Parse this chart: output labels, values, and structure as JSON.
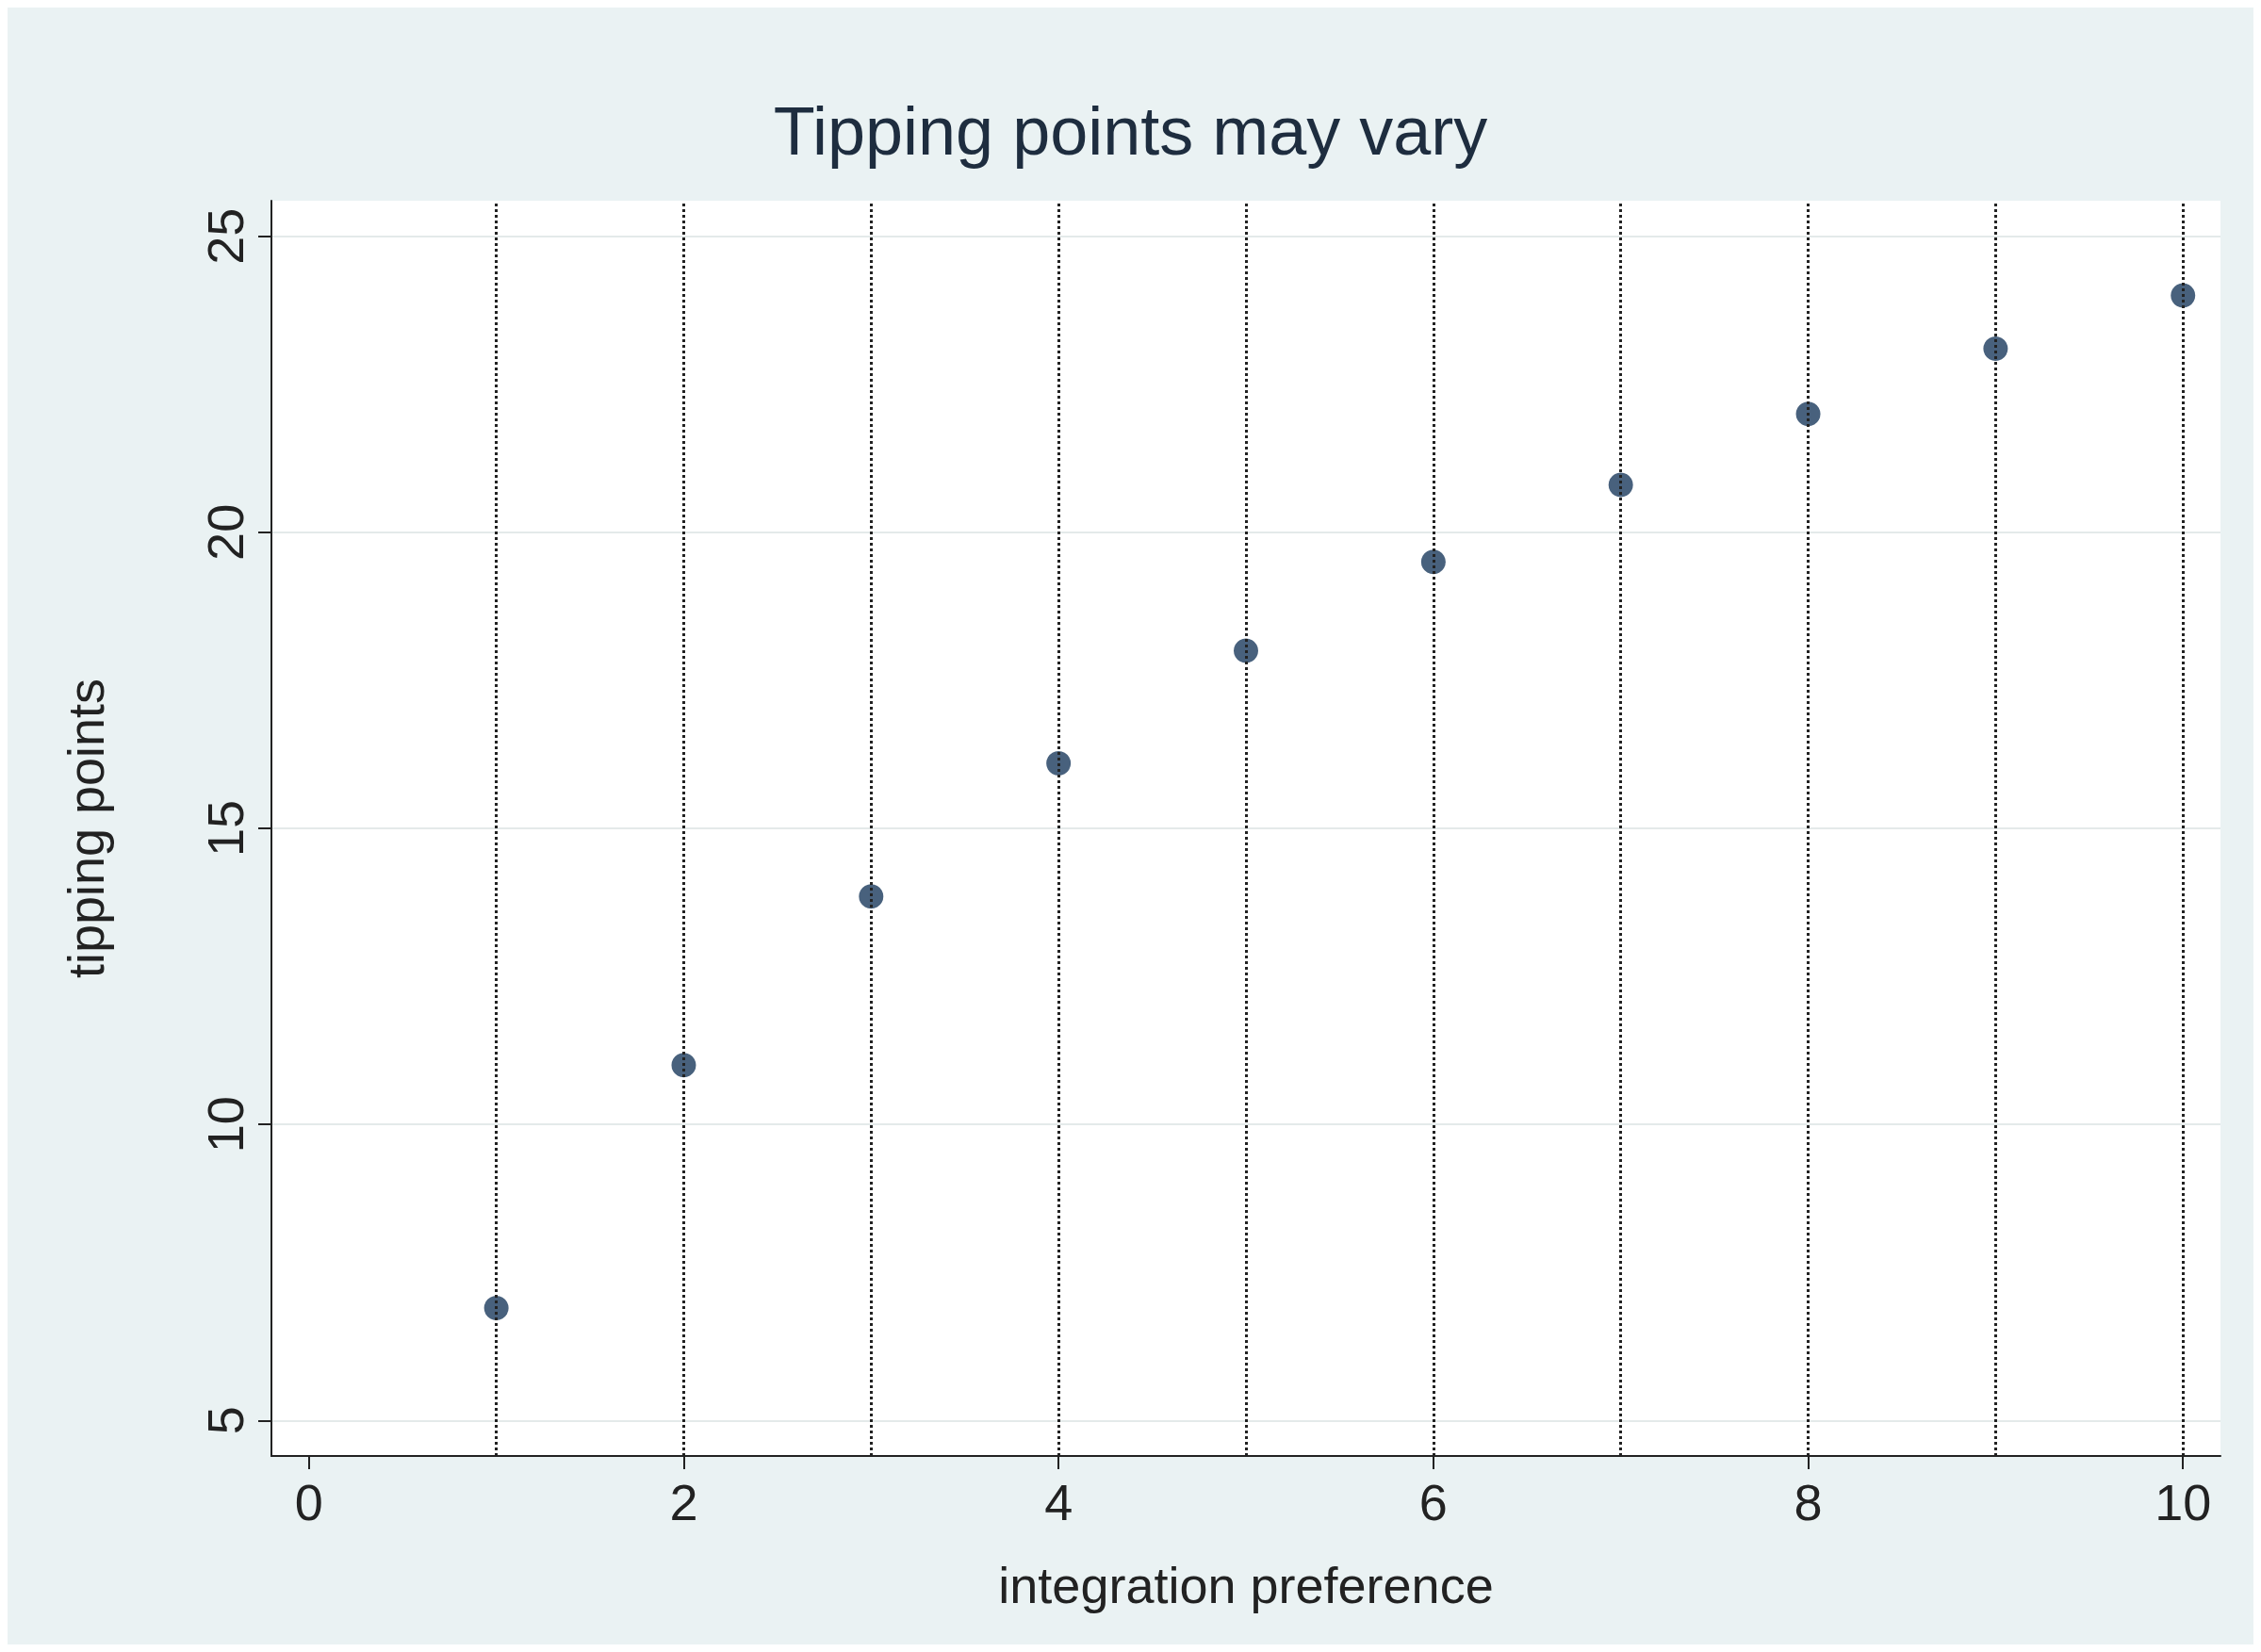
{
  "chart_data": {
    "type": "scatter",
    "title": "Tipping points may vary",
    "xlabel": "integration preference",
    "ylabel": "tipping points",
    "x": [
      1,
      2,
      3,
      4,
      5,
      6,
      7,
      8,
      9,
      10
    ],
    "series": [
      {
        "color": "#1a3a5c",
        "values": [
          6.9,
          11.0,
          13.85,
          16.1,
          18.0,
          19.5,
          20.8,
          22.0,
          23.1,
          24.0
        ]
      }
    ],
    "xlim": [
      -0.2,
      10.2
    ],
    "xticks": [
      0,
      2,
      4,
      6,
      8,
      10
    ],
    "ylim": [
      4.4,
      25.6
    ],
    "yticks": [
      5,
      10,
      15,
      20,
      25
    ],
    "ref_lines": [
      {
        "axis": "x",
        "value": 1
      },
      {
        "axis": "x",
        "value": 2
      },
      {
        "axis": "x",
        "value": 3
      },
      {
        "axis": "x",
        "value": 4
      },
      {
        "axis": "x",
        "value": 5
      },
      {
        "axis": "x",
        "value": 6
      },
      {
        "axis": "x",
        "value": 7
      },
      {
        "axis": "x",
        "value": 8
      },
      {
        "axis": "x",
        "value": 9
      },
      {
        "axis": "x",
        "value": 10
      }
    ],
    "line_style": "dotted",
    "grid": "y",
    "marker": "circle"
  }
}
